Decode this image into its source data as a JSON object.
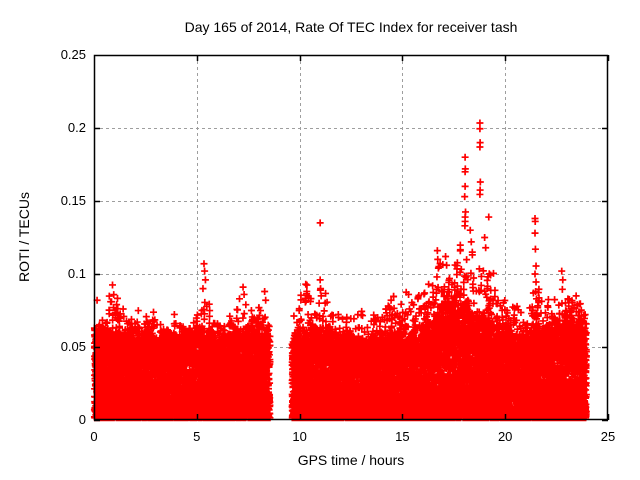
{
  "chart_data": {
    "type": "scatter",
    "title": "Day 165 of 2014, Rate Of TEC Index for receiver tash",
    "xlabel": "GPS time / hours",
    "ylabel": "ROTI / TECUs",
    "xlim": [
      0,
      25
    ],
    "ylim": [
      0,
      0.25
    ],
    "x_ticks": [
      0,
      5,
      10,
      15,
      20,
      25
    ],
    "x_tick_labels": [
      "0",
      "5",
      "10",
      "15",
      "20",
      "25"
    ],
    "y_ticks": [
      0,
      0.05,
      0.1,
      0.15,
      0.2,
      0.25
    ],
    "y_tick_labels": [
      "0",
      "0.05",
      "0.1",
      "0.15",
      "0.2",
      "0.25"
    ],
    "grid": true,
    "grid_style": "dashed",
    "legend": "none",
    "marker": {
      "shape": "plus",
      "size": 7,
      "stroke_width": 1.7,
      "color": "#ff0000"
    },
    "grid_color": "#9e9e9e",
    "axis_color": "#000000",
    "background": "#ffffff",
    "time_range": [
      0.02,
      23.95
    ],
    "data_gaps": [
      [
        8.56,
        9.63
      ]
    ],
    "seed": 20140165,
    "n_core": 16000,
    "n_tail": 3000,
    "core_top_profile": [
      [
        0,
        0.055
      ],
      [
        1,
        0.05
      ],
      [
        2,
        0.051
      ],
      [
        3,
        0.049
      ],
      [
        4,
        0.051
      ],
      [
        5,
        0.054
      ],
      [
        6,
        0.049
      ],
      [
        7,
        0.053
      ],
      [
        8,
        0.054
      ],
      [
        8.56,
        0.05
      ],
      [
        9.63,
        0.048
      ],
      [
        10,
        0.053
      ],
      [
        11,
        0.054
      ],
      [
        12,
        0.05
      ],
      [
        13,
        0.047
      ],
      [
        14,
        0.05
      ],
      [
        15,
        0.05
      ],
      [
        16,
        0.054
      ],
      [
        16.5,
        0.058
      ],
      [
        17,
        0.068
      ],
      [
        17.5,
        0.071
      ],
      [
        18,
        0.066
      ],
      [
        18.5,
        0.061
      ],
      [
        19,
        0.059
      ],
      [
        19.5,
        0.057
      ],
      [
        20,
        0.054
      ],
      [
        20.5,
        0.051
      ],
      [
        21,
        0.049
      ],
      [
        21.5,
        0.056
      ],
      [
        22,
        0.054
      ],
      [
        22.5,
        0.057
      ],
      [
        23,
        0.06
      ],
      [
        23.5,
        0.057
      ],
      [
        24,
        0.054
      ]
    ],
    "envelope_profile": [
      [
        0,
        0.078
      ],
      [
        0.5,
        0.068
      ],
      [
        0.9,
        0.088
      ],
      [
        1.3,
        0.075
      ],
      [
        2,
        0.072
      ],
      [
        2.5,
        0.066
      ],
      [
        3,
        0.07
      ],
      [
        3.5,
        0.066
      ],
      [
        4,
        0.071
      ],
      [
        4.5,
        0.067
      ],
      [
        5,
        0.073
      ],
      [
        5.4,
        0.09
      ],
      [
        5.8,
        0.07
      ],
      [
        6.3,
        0.065
      ],
      [
        6.8,
        0.072
      ],
      [
        7.2,
        0.082
      ],
      [
        7.6,
        0.07
      ],
      [
        8,
        0.078
      ],
      [
        8.56,
        0.072
      ],
      [
        9.63,
        0.068
      ],
      [
        10,
        0.078
      ],
      [
        10.3,
        0.086
      ],
      [
        10.7,
        0.076
      ],
      [
        11,
        0.09
      ],
      [
        11.4,
        0.078
      ],
      [
        12,
        0.072
      ],
      [
        12.5,
        0.068
      ],
      [
        13,
        0.071
      ],
      [
        13.5,
        0.068
      ],
      [
        14,
        0.075
      ],
      [
        14.5,
        0.079
      ],
      [
        15,
        0.079
      ],
      [
        15.5,
        0.084
      ],
      [
        16,
        0.088
      ],
      [
        16.5,
        0.1
      ],
      [
        16.9,
        0.112
      ],
      [
        17.2,
        0.108
      ],
      [
        17.5,
        0.1
      ],
      [
        17.8,
        0.108
      ],
      [
        18.1,
        0.122
      ],
      [
        18.4,
        0.114
      ],
      [
        18.7,
        0.118
      ],
      [
        19,
        0.11
      ],
      [
        19.3,
        0.1
      ],
      [
        19.6,
        0.09
      ],
      [
        20,
        0.082
      ],
      [
        20.5,
        0.076
      ],
      [
        21,
        0.072
      ],
      [
        21.5,
        0.088
      ],
      [
        22,
        0.076
      ],
      [
        22.5,
        0.08
      ],
      [
        22.9,
        0.084
      ],
      [
        23.3,
        0.08
      ],
      [
        23.7,
        0.076
      ],
      [
        24,
        0.072
      ]
    ],
    "outliers": [
      [
        0.15,
        0.082
      ],
      [
        0.85,
        0.081
      ],
      [
        0.9,
        0.0925
      ],
      [
        0.95,
        0.077
      ],
      [
        1.1,
        0.079
      ],
      [
        1.15,
        0.073
      ],
      [
        2.0,
        0.066
      ],
      [
        2.05,
        0.062
      ],
      [
        5.3,
        0.09
      ],
      [
        5.35,
        0.107
      ],
      [
        5.38,
        0.102
      ],
      [
        5.42,
        0.096
      ],
      [
        7.25,
        0.091
      ],
      [
        7.3,
        0.086
      ],
      [
        8.3,
        0.088
      ],
      [
        8.35,
        0.082
      ],
      [
        10.3,
        0.093
      ],
      [
        10.35,
        0.088
      ],
      [
        10.95,
        0.08
      ],
      [
        11.0,
        0.135
      ],
      [
        11.0,
        0.096
      ],
      [
        11.02,
        0.09
      ],
      [
        11.05,
        0.085
      ],
      [
        13.0,
        0.072
      ],
      [
        14.45,
        0.082
      ],
      [
        15.3,
        0.086
      ],
      [
        16.68,
        0.098
      ],
      [
        16.7,
        0.116
      ],
      [
        16.72,
        0.11
      ],
      [
        16.75,
        0.104
      ],
      [
        17.1,
        0.112
      ],
      [
        17.15,
        0.106
      ],
      [
        18.03,
        0.153
      ],
      [
        18.04,
        0.133
      ],
      [
        18.05,
        0.18
      ],
      [
        18.05,
        0.17
      ],
      [
        18.06,
        0.172
      ],
      [
        18.05,
        0.16
      ],
      [
        18.07,
        0.1425
      ],
      [
        18.05,
        0.139
      ],
      [
        18.05,
        0.136
      ],
      [
        18.3,
        0.13
      ],
      [
        18.35,
        0.122
      ],
      [
        18.4,
        0.115
      ],
      [
        18.77,
        0.2034
      ],
      [
        18.77,
        0.1995
      ],
      [
        18.78,
        0.19
      ],
      [
        18.77,
        0.187
      ],
      [
        18.79,
        0.163
      ],
      [
        18.78,
        0.1575
      ],
      [
        18.77,
        0.1545
      ],
      [
        19.0,
        0.125
      ],
      [
        19.05,
        0.118
      ],
      [
        19.2,
        0.139
      ],
      [
        21.45,
        0.138
      ],
      [
        21.46,
        0.136
      ],
      [
        21.45,
        0.128
      ],
      [
        21.47,
        0.117
      ],
      [
        21.5,
        0.1055
      ],
      [
        21.45,
        0.1
      ],
      [
        21.5,
        0.0945
      ],
      [
        21.48,
        0.088
      ],
      [
        21.52,
        0.083
      ],
      [
        22.1,
        0.0825
      ],
      [
        22.75,
        0.102
      ],
      [
        22.8,
        0.096
      ],
      [
        22.78,
        0.0895
      ],
      [
        23.05,
        0.083
      ],
      [
        23.45,
        0.085
      ],
      [
        23.5,
        0.079
      ]
    ]
  }
}
